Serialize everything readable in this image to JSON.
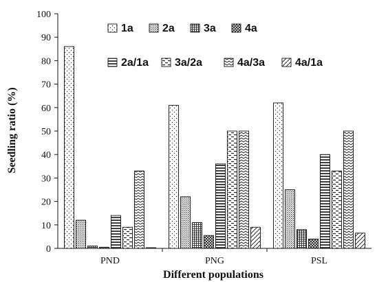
{
  "chart_data": {
    "type": "bar",
    "title": "",
    "xlabel": "Different populations",
    "ylabel": "Seedling ratio (%)",
    "ylim": [
      0,
      100
    ],
    "yticks": [
      0,
      10,
      20,
      30,
      40,
      50,
      60,
      70,
      80,
      90,
      100
    ],
    "grid": false,
    "legend_position": "top-right",
    "categories": [
      "PND",
      "PNG",
      "PSL"
    ],
    "series": [
      {
        "name": "1a",
        "pattern": "dots-sparse",
        "values": [
          86,
          61,
          62
        ]
      },
      {
        "name": "2a",
        "pattern": "dots-dense",
        "values": [
          12,
          22,
          25
        ]
      },
      {
        "name": "3a",
        "pattern": "grid",
        "values": [
          1,
          11,
          8
        ]
      },
      {
        "name": "4a",
        "pattern": "diagonal-cross",
        "values": [
          0.5,
          5.5,
          4
        ]
      },
      {
        "name": "2a/1a",
        "pattern": "horizontal-lines",
        "values": [
          14,
          36,
          40
        ]
      },
      {
        "name": "3a/2a",
        "pattern": "dashed-horizontal",
        "values": [
          9,
          50,
          33
        ]
      },
      {
        "name": "4a/3a",
        "pattern": "zigzag",
        "values": [
          33,
          50,
          50
        ]
      },
      {
        "name": "4a/1a",
        "pattern": "dashed-diagonal",
        "values": [
          0.3,
          9,
          6.5
        ]
      }
    ]
  }
}
